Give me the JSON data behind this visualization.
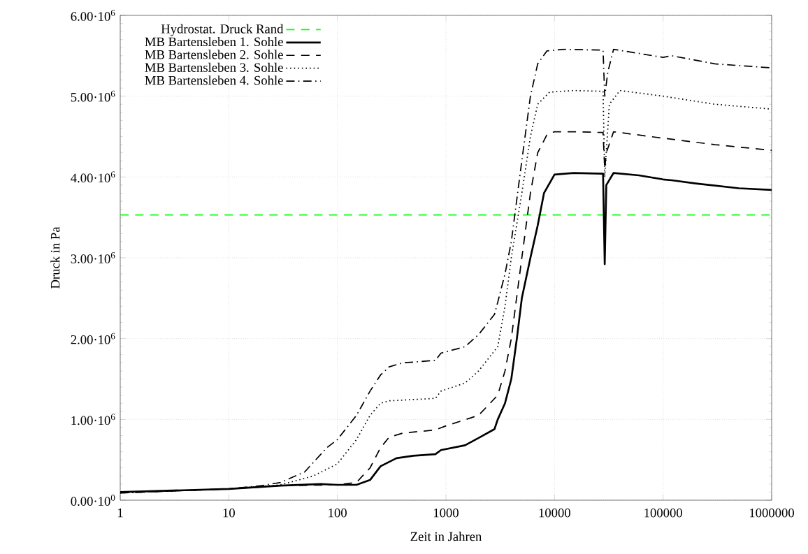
{
  "chart_data": {
    "type": "line",
    "xlabel": "Zeit in Jahren",
    "ylabel": "Druck in Pa",
    "log": "x",
    "grid": true,
    "legend": "top left",
    "xlim": [
      1,
      1000000
    ],
    "xticks": [
      1,
      10,
      100,
      1000,
      10000,
      100000,
      1000000
    ],
    "ylim": [
      0,
      6000000
    ],
    "yticks": [
      {
        "value": 0,
        "label": "0.00·10$^{0}$"
      },
      {
        "value": 1000000,
        "label": "1.00·10$^{6}$"
      },
      {
        "value": 2000000,
        "label": "2.00·10$^{6}$"
      },
      {
        "value": 3000000,
        "label": "3.00·10$^{6}$"
      },
      {
        "value": 4000000,
        "label": "4.00·10$^{6}$"
      },
      {
        "value": 5000000,
        "label": "5.00·10$^{6}$"
      },
      {
        "value": 6000000,
        "label": "6.00·10$^{6}$"
      }
    ],
    "series": [
      {
        "name": "Hydrostat. Druck Rand",
        "color": "#00ff00",
        "line_style": "dashed",
        "x": [
          1,
          1000000
        ],
        "values": [
          3530000,
          3530000
        ]
      },
      {
        "name": "MB Bartensleben 1. Sohle",
        "color": "#000000",
        "line_style": "solid",
        "x": [
          1,
          10,
          30,
          70,
          100,
          150,
          200,
          250,
          350,
          500,
          800,
          900,
          1500,
          2000,
          2800,
          3000,
          3500,
          4000,
          4500,
          5000,
          6000,
          7000,
          8000,
          10000,
          15000,
          28000,
          29000,
          30000,
          35000,
          60000,
          100000,
          120000,
          200000,
          500000,
          1000000
        ],
        "values": [
          100000,
          140000,
          180000,
          200000,
          190000,
          190000,
          250000,
          420000,
          520000,
          550000,
          570000,
          620000,
          680000,
          770000,
          880000,
          1000000,
          1200000,
          1500000,
          2000000,
          2500000,
          3000000,
          3400000,
          3800000,
          4030000,
          4050000,
          4040000,
          2920000,
          3900000,
          4050000,
          4020000,
          3970000,
          3960000,
          3920000,
          3860000,
          3840000
        ]
      },
      {
        "name": "MB Bartensleben 2. Sohle",
        "color": "#000000",
        "line_style": "dashed",
        "x": [
          1,
          10,
          30,
          100,
          150,
          200,
          250,
          300,
          400,
          800,
          1000,
          2000,
          3000,
          3500,
          4000,
          5000,
          6000,
          7000,
          8500,
          10000,
          15000,
          28000,
          29000,
          30000,
          35000,
          100000,
          300000,
          1000000
        ],
        "values": [
          90000,
          140000,
          180000,
          190000,
          220000,
          400000,
          650000,
          780000,
          830000,
          870000,
          920000,
          1050000,
          1300000,
          1600000,
          2000000,
          3000000,
          3800000,
          4300000,
          4520000,
          4560000,
          4560000,
          4550000,
          4100000,
          4300000,
          4560000,
          4480000,
          4400000,
          4330000
        ]
      },
      {
        "name": "MB Bartensleben 3. Sohle",
        "color": "#000000",
        "line_style": "dotted",
        "x": [
          1,
          10,
          30,
          60,
          100,
          150,
          200,
          250,
          300,
          800,
          900,
          1500,
          2000,
          3000,
          3500,
          4000,
          5000,
          6000,
          7000,
          9000,
          15000,
          28000,
          29000,
          32000,
          40000,
          100000,
          300000,
          1000000
        ],
        "values": [
          90000,
          140000,
          190000,
          300000,
          450000,
          750000,
          1050000,
          1200000,
          1230000,
          1260000,
          1350000,
          1450000,
          1600000,
          1900000,
          2400000,
          3000000,
          3800000,
          4500000,
          4900000,
          5050000,
          5070000,
          5060000,
          4000000,
          4900000,
          5070000,
          5000000,
          4900000,
          4840000
        ]
      },
      {
        "name": "MB Bartensleben 4. Sohle",
        "color": "#000000",
        "line_style": "dashdot",
        "x": [
          1,
          10,
          20,
          30,
          50,
          80,
          100,
          150,
          200,
          250,
          300,
          400,
          800,
          900,
          1500,
          2000,
          2800,
          3000,
          3500,
          4000,
          5000,
          6000,
          7000,
          8500,
          12000,
          28000,
          29000,
          31000,
          35000,
          100000,
          120000,
          300000,
          1000000
        ],
        "values": [
          90000,
          140000,
          180000,
          220000,
          350000,
          650000,
          750000,
          1050000,
          1350000,
          1550000,
          1650000,
          1700000,
          1730000,
          1820000,
          1900000,
          2050000,
          2300000,
          2450000,
          2800000,
          3200000,
          4200000,
          5000000,
          5400000,
          5560000,
          5580000,
          5570000,
          5000000,
          5300000,
          5580000,
          5480000,
          5500000,
          5400000,
          5350000
        ]
      }
    ]
  }
}
